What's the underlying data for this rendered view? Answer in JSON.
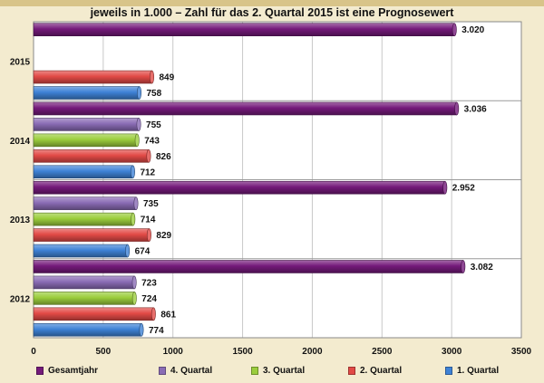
{
  "header": {
    "subtitle": "jeweils in 1.000 – Zahl für das 2. Quartal 2015 ist eine Prognosewert"
  },
  "colors": {
    "gesamtjahr": "#741a7a",
    "q4": "#8a6cb5",
    "q3": "#9bcd3c",
    "q2": "#e24a46",
    "q1": "#3e82d6"
  },
  "chart_data": {
    "type": "bar",
    "orientation": "horizontal",
    "categories": [
      "2015",
      "2014",
      "2013",
      "2012"
    ],
    "series": [
      {
        "name": "Gesamtjahr",
        "key": "gesamtjahr",
        "values": [
          3020,
          3036,
          2952,
          3082
        ],
        "labels": [
          "3.020",
          "3.036",
          "2.952",
          "3.082"
        ]
      },
      {
        "name": "4. Quartal",
        "key": "q4",
        "values": [
          null,
          755,
          735,
          723
        ],
        "labels": [
          null,
          "755",
          "735",
          "723"
        ]
      },
      {
        "name": "3. Quartal",
        "key": "q3",
        "values": [
          null,
          743,
          714,
          724
        ],
        "labels": [
          null,
          "743",
          "714",
          "724"
        ]
      },
      {
        "name": "2. Quartal",
        "key": "q2",
        "values": [
          849,
          826,
          829,
          861
        ],
        "labels": [
          "849",
          "826",
          "829",
          "861"
        ]
      },
      {
        "name": "1. Quartal",
        "key": "q1",
        "values": [
          758,
          712,
          674,
          774
        ],
        "labels": [
          "758",
          "712",
          "674",
          "774"
        ]
      }
    ],
    "x_ticks": [
      "0",
      "500",
      "1000",
      "1500",
      "2000",
      "2500",
      "3000",
      "3500"
    ],
    "xlim": [
      0,
      3500
    ],
    "grid": true,
    "legend_position": "bottom"
  }
}
